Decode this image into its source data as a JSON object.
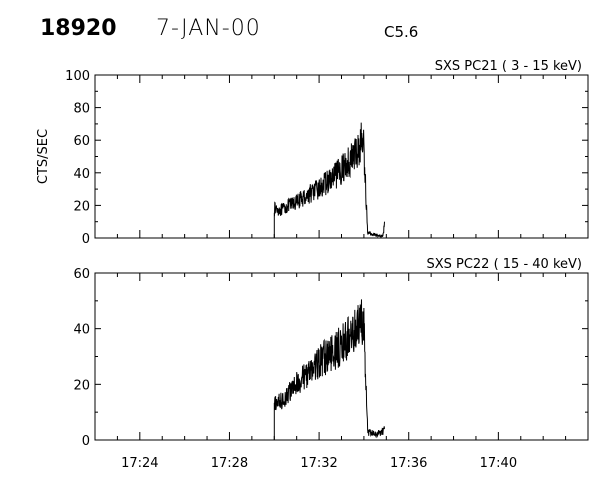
{
  "header": {
    "event_id": "18920",
    "date": "7-JAN-00",
    "flare_class": "C5.6"
  },
  "chart_data": [
    {
      "type": "line",
      "title": "SXS PC21  (  3 - 15 keV)",
      "ylabel": "CTS/SEC",
      "xlabel": "",
      "xlim": [
        "17:22",
        "17:44"
      ],
      "ylim": [
        0,
        100
      ],
      "yticks": [
        0,
        20,
        40,
        60,
        80,
        100
      ],
      "xticks": [],
      "grid": false,
      "series": [
        {
          "x": [
            "17:30:00",
            "17:30:00",
            "17:30:20",
            "17:30:40",
            "17:31:00",
            "17:31:20",
            "17:31:40",
            "17:32:00",
            "17:32:20",
            "17:32:40",
            "17:33:00",
            "17:33:20",
            "17:33:40",
            "17:33:55",
            "17:34:00",
            "17:34:10",
            "17:34:30",
            "17:34:50",
            "17:34:55"
          ],
          "values": [
            0,
            18,
            17,
            20,
            22,
            25,
            28,
            30,
            34,
            37,
            42,
            47,
            52,
            60,
            55,
            3,
            2,
            1,
            10
          ]
        }
      ]
    },
    {
      "type": "line",
      "title": "SXS PC22  ( 15 - 40 keV)",
      "ylabel": "",
      "xlabel": "",
      "xlim": [
        "17:22",
        "17:44"
      ],
      "ylim": [
        0,
        60
      ],
      "yticks": [
        0,
        20,
        40,
        60
      ],
      "xticks": [
        "17:24",
        "17:28",
        "17:32",
        "17:36",
        "17:40"
      ],
      "grid": false,
      "series": [
        {
          "x": [
            "17:30:00",
            "17:30:00",
            "17:30:20",
            "17:30:40",
            "17:31:00",
            "17:31:20",
            "17:31:40",
            "17:32:00",
            "17:32:20",
            "17:32:40",
            "17:33:00",
            "17:33:20",
            "17:33:40",
            "17:33:55",
            "17:34:00",
            "17:34:10",
            "17:34:30",
            "17:34:50",
            "17:34:55"
          ],
          "values": [
            0,
            13,
            14,
            17,
            20,
            23,
            25,
            28,
            30,
            32,
            34,
            37,
            39,
            44,
            40,
            3,
            2,
            3,
            4
          ]
        }
      ]
    }
  ]
}
